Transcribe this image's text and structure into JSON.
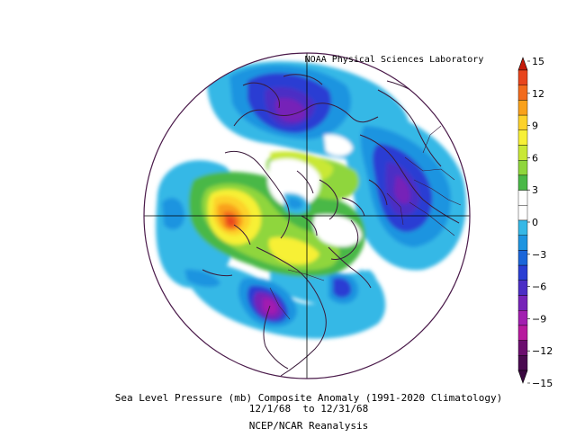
{
  "credit": "NOAA Physical Sciences Laboratory",
  "caption": {
    "line1": "Sea Level Pressure (mb) Composite Anomaly (1991-2020 Climatology)",
    "line2": "12/1/68  to 12/31/68",
    "line3": "NCEP/NCAR Reanalysis"
  },
  "colorbar": {
    "levels": [
      {
        "value": 15,
        "label": "15",
        "color": "#c51b0a"
      },
      {
        "value": 13.5,
        "label": "",
        "color": "#e8451d"
      },
      {
        "value": 12,
        "label": "12",
        "color": "#f26a1c"
      },
      {
        "value": 10.5,
        "label": "",
        "color": "#f9a11b"
      },
      {
        "value": 9,
        "label": "9",
        "color": "#fdd22a"
      },
      {
        "value": 7.5,
        "label": "",
        "color": "#f7f036"
      },
      {
        "value": 6,
        "label": "6",
        "color": "#c9e835"
      },
      {
        "value": 4.5,
        "label": "",
        "color": "#8fd63c"
      },
      {
        "value": 3,
        "label": "3",
        "color": "#4ab847"
      },
      {
        "value": 1.5,
        "label": "",
        "color": "#ffffff"
      },
      {
        "value": 0,
        "label": "0",
        "color": "#ffffff"
      },
      {
        "value": -1.5,
        "label": "",
        "color": "#36b8e6"
      },
      {
        "value": -3,
        "label": "−3",
        "color": "#1d94e0"
      },
      {
        "value": -4.5,
        "label": "",
        "color": "#1b66d9"
      },
      {
        "value": -6,
        "label": "−6",
        "color": "#2a3ed3"
      },
      {
        "value": -7.5,
        "label": "",
        "color": "#4b2ec5"
      },
      {
        "value": -9,
        "label": "−9",
        "color": "#7623b8"
      },
      {
        "value": -10.5,
        "label": "",
        "color": "#a21fb0"
      },
      {
        "value": -12,
        "label": "−12",
        "color": "#b71a9e"
      },
      {
        "value": -13.5,
        "label": "",
        "color": "#6b0e6e"
      },
      {
        "value": -15,
        "label": "−15",
        "color": "#4a0a50"
      }
    ],
    "top_arrow_color": "#c51b0a",
    "bottom_arrow_color": "#3a0840"
  }
}
